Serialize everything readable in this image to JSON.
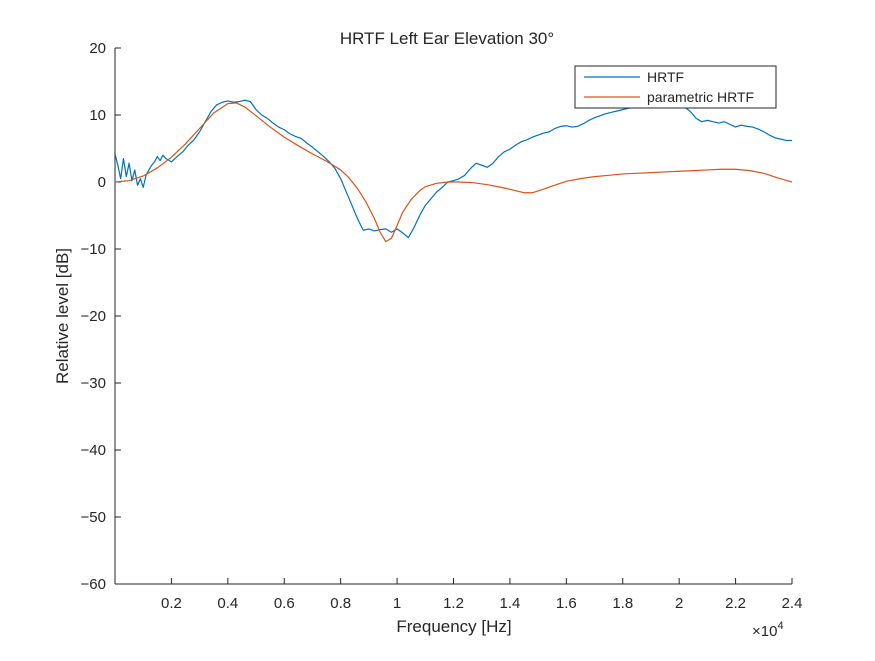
{
  "chart_data": {
    "type": "line",
    "title": "HRTF Left Ear Elevation 30°",
    "xlabel": "Frequency [Hz]",
    "ylabel": "Relative level [dB]",
    "xlim": [
      0,
      24000
    ],
    "ylim": [
      -60,
      20
    ],
    "x_exponent_label": "×10",
    "x_exponent_power": "4",
    "x_tick_values": [
      2000,
      4000,
      6000,
      8000,
      10000,
      12000,
      14000,
      16000,
      18000,
      20000,
      22000,
      24000
    ],
    "x_tick_labels": [
      "0.2",
      "0.4",
      "0.6",
      "0.8",
      "1",
      "1.2",
      "1.4",
      "1.6",
      "1.8",
      "2",
      "2.2",
      "2.4"
    ],
    "y_tick_values": [
      20,
      10,
      0,
      -10,
      -20,
      -30,
      -40,
      -50,
      -60
    ],
    "y_tick_labels": [
      "20",
      "10",
      "0",
      "−10",
      "−20",
      "−30",
      "−40",
      "−50",
      "−60"
    ],
    "grid": false,
    "legend_position": "top-right",
    "series": [
      {
        "name": "HRTF",
        "color": "#0072BD",
        "x": [
          0,
          100,
          200,
          300,
          400,
          500,
          600,
          700,
          800,
          900,
          1000,
          1100,
          1200,
          1300,
          1400,
          1500,
          1600,
          1700,
          1800,
          2000,
          2200,
          2400,
          2600,
          2800,
          3000,
          3200,
          3400,
          3600,
          3800,
          4000,
          4200,
          4400,
          4600,
          4800,
          5000,
          5200,
          5400,
          5600,
          5800,
          6000,
          6200,
          6400,
          6600,
          6800,
          7000,
          7200,
          7400,
          7600,
          7800,
          8000,
          8200,
          8400,
          8600,
          8800,
          9000,
          9200,
          9400,
          9600,
          9800,
          10000,
          10200,
          10400,
          10600,
          10800,
          11000,
          11200,
          11400,
          11600,
          11800,
          12000,
          12200,
          12400,
          12600,
          12800,
          13000,
          13200,
          13400,
          13600,
          13800,
          14000,
          14200,
          14400,
          14600,
          14800,
          15000,
          15200,
          15400,
          15600,
          15800,
          16000,
          16200,
          16400,
          16600,
          16800,
          17000,
          17200,
          17400,
          17600,
          17800,
          18000,
          18200,
          18400,
          18600,
          18800,
          19000,
          19200,
          19400,
          19600,
          19800,
          20000,
          20200,
          20400,
          20600,
          20800,
          21000,
          21200,
          21400,
          21600,
          21800,
          22000,
          22200,
          22400,
          22600,
          22800,
          23000,
          23200,
          23400,
          23600,
          23800,
          24000
        ],
        "y": [
          4.2,
          2.5,
          0.5,
          3.5,
          0.8,
          2.8,
          0.2,
          1.8,
          -0.5,
          0.5,
          -0.8,
          1.0,
          1.8,
          2.5,
          3.0,
          3.8,
          3.2,
          4.0,
          3.5,
          3.0,
          3.8,
          4.5,
          5.5,
          6.3,
          7.5,
          9.0,
          10.5,
          11.5,
          11.9,
          12.1,
          11.9,
          12.0,
          12.2,
          12.0,
          10.8,
          10.0,
          9.5,
          8.8,
          8.2,
          7.8,
          7.2,
          6.8,
          6.5,
          5.8,
          5.2,
          4.5,
          3.8,
          3.0,
          2.0,
          0.5,
          -1.5,
          -3.5,
          -5.5,
          -7.2,
          -7.0,
          -7.3,
          -7.1,
          -7.0,
          -7.5,
          -7.0,
          -7.6,
          -8.3,
          -6.8,
          -5.0,
          -3.5,
          -2.5,
          -1.5,
          -0.8,
          0.0,
          0.2,
          0.5,
          1.0,
          2.0,
          2.8,
          2.5,
          2.2,
          2.8,
          3.8,
          4.5,
          4.9,
          5.5,
          6.0,
          6.3,
          6.7,
          7.0,
          7.3,
          7.5,
          8.0,
          8.3,
          8.4,
          8.2,
          8.3,
          8.7,
          9.2,
          9.6,
          9.9,
          10.2,
          10.4,
          10.6,
          10.8,
          11.0,
          11.2,
          11.5,
          11.8,
          12.2,
          12.5,
          12.6,
          12.4,
          12.0,
          11.8,
          11.2,
          10.5,
          9.5,
          9.0,
          9.2,
          9.0,
          8.8,
          9.0,
          8.6,
          8.2,
          8.5,
          8.3,
          8.2,
          7.9,
          7.5,
          7.0,
          6.6,
          6.4,
          6.2,
          6.2
        ],
        "show_in_legend": true
      },
      {
        "name": "parametric HRTF",
        "color": "#D95319",
        "x": [
          0,
          500,
          1000,
          1500,
          2000,
          2500,
          3000,
          3500,
          4000,
          4300,
          4600,
          5000,
          5500,
          6000,
          6500,
          7000,
          7500,
          8000,
          8300,
          8600,
          8900,
          9200,
          9400,
          9600,
          9800,
          10000,
          10200,
          10500,
          10800,
          11000,
          11400,
          11800,
          12200,
          12700,
          13200,
          13700,
          14200,
          14500,
          14800,
          15100,
          15500,
          16000,
          16500,
          17000,
          17500,
          18000,
          18500,
          19000,
          19500,
          20000,
          20500,
          21000,
          21500,
          22000,
          22500,
          23000,
          23500,
          24000
        ],
        "y": [
          0.0,
          0.2,
          0.9,
          2.1,
          3.7,
          5.7,
          8.0,
          10.3,
          11.7,
          11.8,
          11.2,
          9.9,
          8.2,
          6.7,
          5.4,
          4.2,
          3.1,
          1.8,
          0.6,
          -1.0,
          -3.0,
          -5.5,
          -7.5,
          -8.9,
          -8.4,
          -6.5,
          -4.5,
          -2.6,
          -1.3,
          -0.7,
          -0.2,
          0.0,
          0.0,
          -0.1,
          -0.4,
          -0.8,
          -1.3,
          -1.6,
          -1.6,
          -1.2,
          -0.6,
          0.1,
          0.5,
          0.8,
          1.0,
          1.2,
          1.3,
          1.4,
          1.5,
          1.6,
          1.7,
          1.8,
          1.9,
          1.9,
          1.7,
          1.3,
          0.6,
          0.0
        ],
        "show_in_legend": true
      }
    ]
  }
}
